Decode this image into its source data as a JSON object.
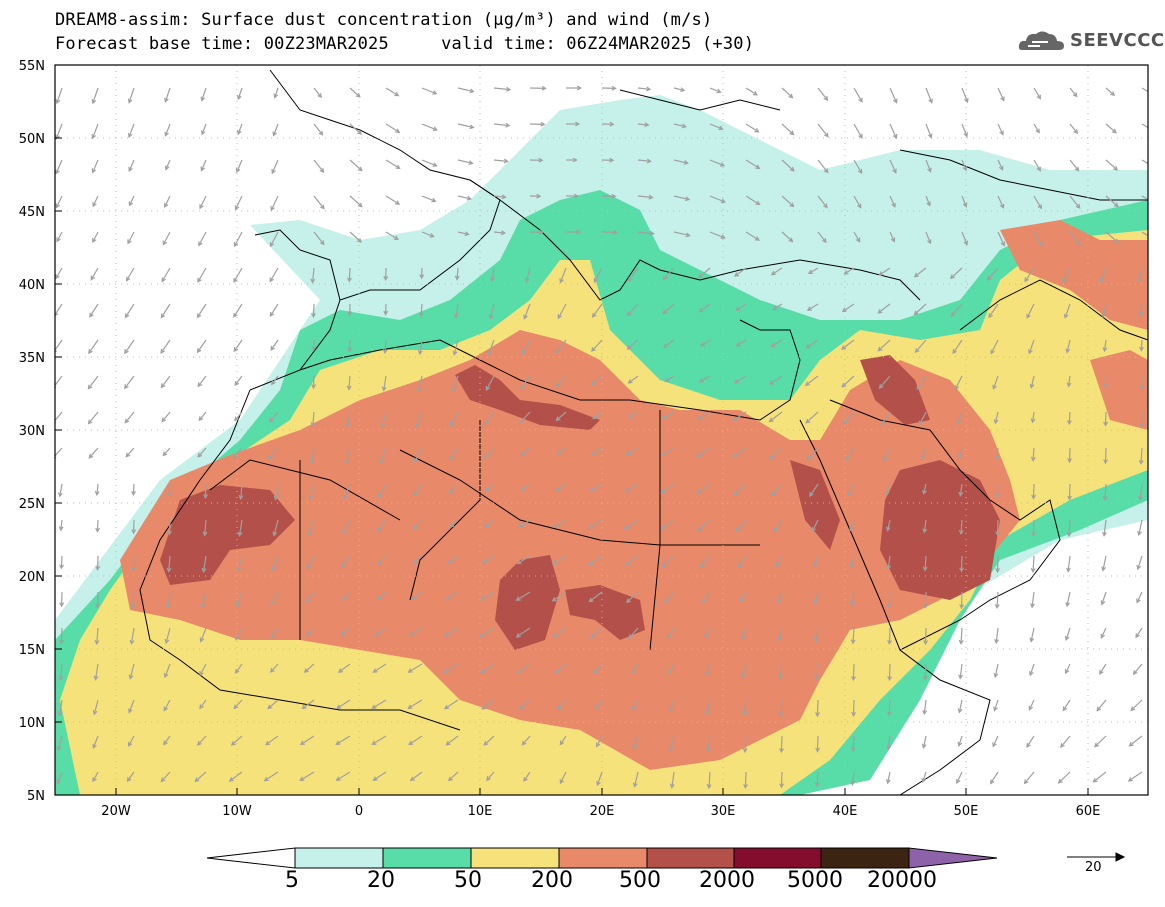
{
  "header": {
    "title_line1": "DREAM8-assim: Surface dust concentration (µg/m³) and wind (m/s)",
    "title_line2": "Forecast base time: 00Z23MAR2025     valid time: 06Z24MAR2025 (+30)"
  },
  "logo": {
    "text": "SEEVCCC",
    "icon": "cloud-icon"
  },
  "axes": {
    "lat_labels": [
      "55N",
      "50N",
      "45N",
      "40N",
      "35N",
      "30N",
      "25N",
      "20N",
      "15N",
      "10N",
      "5N"
    ],
    "lon_labels": [
      "20W",
      "10W",
      "0",
      "10E",
      "20E",
      "30E",
      "40E",
      "50E",
      "60E"
    ]
  },
  "colorbar": {
    "labels": [
      "5",
      "20",
      "50",
      "200",
      "500",
      "2000",
      "5000",
      "20000"
    ],
    "colors": [
      "#ffffff",
      "#c6f0ea",
      "#58dca8",
      "#f6e27a",
      "#e8896a",
      "#b4504a",
      "#840c2c",
      "#3c2412",
      "#8e62a8"
    ]
  },
  "wind_reference": {
    "label": "20"
  },
  "colors": {
    "land_outline": "#000000",
    "wind_arrow": "#a0a0a0",
    "grid": "#bbbbbb"
  }
}
